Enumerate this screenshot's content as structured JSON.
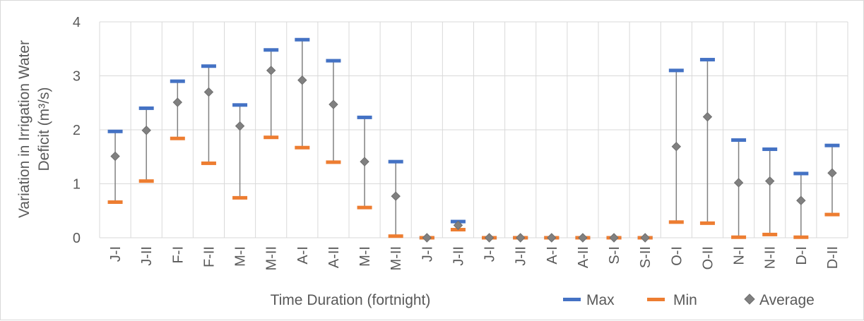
{
  "chart_data": {
    "type": "scatter",
    "subtype": "high-low-average",
    "title": "",
    "xlabel": "Time Duration (fortnight)",
    "ylabel_line1": "Variation in Irrigation Water",
    "ylabel_line2": "Deficit  (m³/s)",
    "ylim": [
      0,
      4
    ],
    "yticks": [
      "0",
      "1",
      "2",
      "3",
      "4"
    ],
    "grid": true,
    "legend_position": "bottom-right",
    "categories": [
      "J-I",
      "J-II",
      "F-I",
      "F-II",
      "M-I",
      "M-II",
      "A-I",
      "A-II",
      "M-I",
      "M-II",
      "J-I",
      "J-II",
      "J-I",
      "J-II",
      "A-I",
      "A-II",
      "S-I",
      "S-II",
      "O-I",
      "O-II",
      "N-I",
      "N-II",
      "D-I",
      "D-II"
    ],
    "series": [
      {
        "name": "Max",
        "color": "#4472c4",
        "marker": "dash",
        "values": [
          1.97,
          2.4,
          2.9,
          3.18,
          2.46,
          3.48,
          3.67,
          3.28,
          2.23,
          1.41,
          0.0,
          0.3,
          0.0,
          0.0,
          0.0,
          0.0,
          0.0,
          0.0,
          3.1,
          3.3,
          1.81,
          1.64,
          1.19,
          1.71
        ]
      },
      {
        "name": "Min",
        "color": "#ed7d31",
        "marker": "dash",
        "values": [
          0.66,
          1.05,
          1.84,
          1.38,
          0.74,
          1.86,
          1.67,
          1.4,
          0.56,
          0.03,
          0.0,
          0.15,
          0.0,
          0.0,
          0.0,
          0.0,
          0.0,
          0.0,
          0.29,
          0.27,
          0.01,
          0.06,
          0.01,
          0.43
        ]
      },
      {
        "name": "Average",
        "color": "#808080",
        "marker": "diamond",
        "values": [
          1.51,
          1.99,
          2.51,
          2.7,
          2.07,
          3.1,
          2.92,
          2.47,
          1.41,
          0.77,
          0.0,
          0.23,
          0.0,
          0.0,
          0.0,
          0.0,
          0.0,
          0.0,
          1.69,
          2.24,
          1.02,
          1.05,
          0.69,
          1.2
        ]
      }
    ],
    "colors": {
      "grid": "#d9d9d9",
      "axis_text": "#595959",
      "whisker": "#808080"
    }
  }
}
